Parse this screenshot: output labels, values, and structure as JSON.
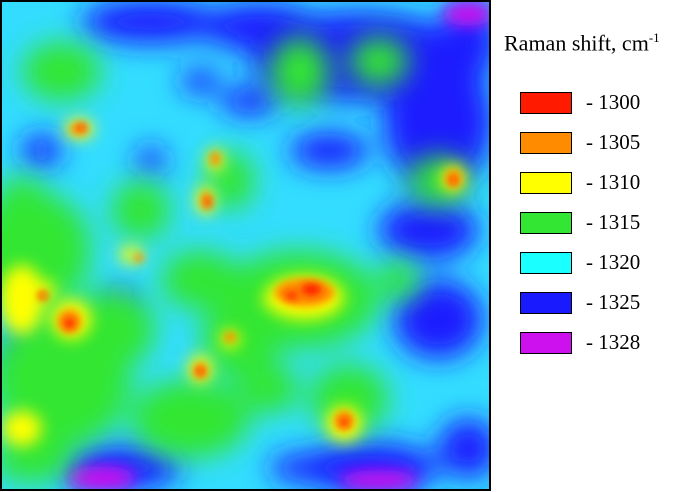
{
  "chart_data": {
    "type": "heatmap",
    "title": "",
    "legend": {
      "title": "Raman shift, cm",
      "title_superscript": "-1",
      "placement": "right",
      "entries": [
        {
          "label": "- 1300",
          "value": 1300,
          "color": "#ff1a00"
        },
        {
          "label": "- 1305",
          "value": 1305,
          "color": "#ff8c00"
        },
        {
          "label": "- 1310",
          "value": 1310,
          "color": "#ffff00"
        },
        {
          "label": "- 1315",
          "value": 1315,
          "color": "#33e633"
        },
        {
          "label": "- 1320",
          "value": 1320,
          "color": "#1affff"
        },
        {
          "label": "- 1325",
          "value": 1325,
          "color": "#1a1aff"
        },
        {
          "label": "- 1328",
          "value": 1328,
          "color": "#cc11ee"
        }
      ]
    },
    "colors": {
      "background_field": "#33ddff",
      "low_shift_hotspot": "#ff1a00"
    }
  }
}
